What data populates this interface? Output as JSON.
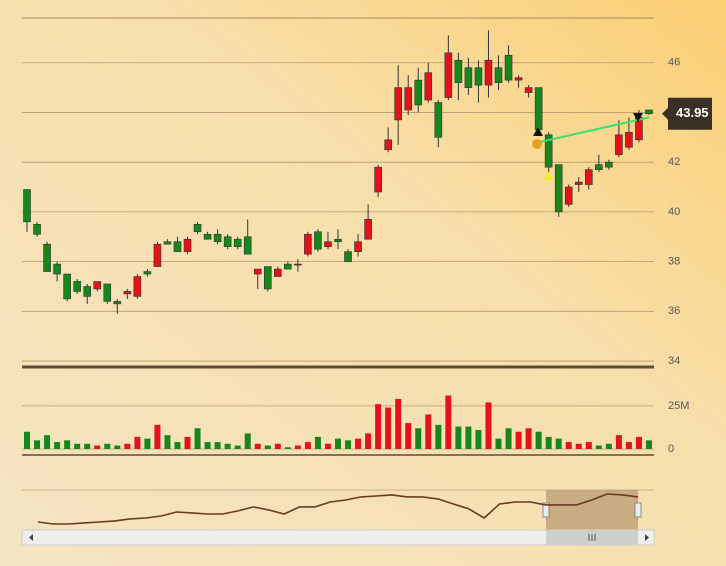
{
  "chart_data": {
    "type": "candlestick",
    "up_color": "#e3121b",
    "down_color": "#17861c",
    "ylim": [
      33.72,
      47.8
    ],
    "yticks": [
      34,
      36,
      38,
      40,
      42,
      44,
      46
    ],
    "open": [
      40.9,
      39.5,
      38.7,
      37.9,
      37.5,
      37.2,
      37.0,
      36.9,
      37.1,
      36.4,
      36.7,
      36.6,
      37.6,
      37.8,
      38.8,
      38.8,
      38.4,
      39.5,
      39.1,
      39.1,
      39.0,
      38.9,
      39.0,
      37.5,
      37.8,
      37.4,
      37.9,
      37.9,
      38.3,
      39.2,
      38.6,
      38.9,
      38.4,
      38.4,
      38.9,
      40.8,
      42.5,
      43.7,
      44.1,
      45.3,
      44.5,
      44.4,
      44.6,
      46.1,
      45.8,
      45.8,
      45.1,
      45.8,
      46.3,
      45.3,
      44.8,
      45.0,
      43.1,
      41.9,
      40.3,
      41.1,
      41.1,
      41.9,
      42.0,
      42.3,
      42.6,
      42.9,
      44.1
    ],
    "high": [
      40.9,
      39.6,
      38.8,
      38.0,
      37.5,
      37.3,
      37.1,
      37.2,
      37.1,
      36.5,
      36.9,
      37.5,
      37.7,
      38.8,
      38.9,
      39.0,
      39.0,
      39.6,
      39.2,
      39.3,
      39.1,
      39.0,
      39.7,
      37.7,
      37.8,
      37.8,
      38.0,
      38.1,
      39.2,
      39.3,
      39.2,
      39.3,
      38.5,
      39.1,
      40.3,
      41.9,
      43.4,
      45.9,
      45.5,
      45.8,
      46.0,
      44.5,
      47.1,
      46.4,
      46.2,
      46.1,
      47.3,
      46.3,
      46.7,
      45.5,
      45.1,
      45.0,
      43.2,
      41.9,
      41.1,
      41.4,
      41.8,
      42.3,
      42.1,
      43.7,
      43.8,
      44.1,
      44.1
    ],
    "low": [
      39.2,
      39.0,
      37.6,
      37.2,
      36.4,
      36.7,
      36.3,
      36.8,
      36.3,
      35.9,
      36.5,
      36.5,
      37.4,
      37.8,
      38.7,
      38.4,
      38.3,
      39.1,
      38.9,
      38.7,
      38.5,
      38.5,
      38.3,
      36.9,
      36.8,
      37.4,
      37.7,
      37.6,
      38.2,
      38.4,
      38.5,
      38.5,
      38.0,
      38.2,
      38.9,
      40.6,
      42.4,
      42.7,
      43.9,
      44.0,
      44.4,
      42.6,
      44.5,
      44.5,
      44.7,
      44.4,
      44.6,
      44.9,
      45.2,
      45.0,
      44.6,
      43.2,
      41.6,
      39.8,
      40.2,
      40.8,
      40.9,
      41.6,
      41.7,
      42.2,
      42.5,
      42.8,
      43.9
    ],
    "close": [
      39.6,
      39.1,
      37.6,
      37.5,
      36.5,
      36.8,
      36.6,
      37.2,
      36.4,
      36.3,
      36.8,
      37.4,
      37.5,
      38.7,
      38.7,
      38.4,
      38.9,
      39.2,
      38.9,
      38.8,
      38.6,
      38.6,
      38.3,
      37.7,
      36.9,
      37.7,
      37.7,
      37.9,
      39.1,
      38.5,
      38.8,
      38.8,
      38.0,
      38.8,
      39.7,
      41.8,
      42.9,
      45.0,
      45.0,
      44.3,
      45.6,
      43.0,
      46.4,
      45.2,
      45.0,
      45.1,
      46.1,
      45.2,
      45.3,
      45.4,
      45.0,
      43.3,
      41.8,
      40.0,
      41.0,
      41.2,
      41.7,
      41.7,
      41.8,
      43.1,
      43.2,
      43.8,
      43.95
    ],
    "last_price": 43.95,
    "volume": {
      "ylim": [
        -3.5,
        40
      ],
      "yticks": [
        0,
        {
          "value": 25,
          "label": "25M"
        }
      ],
      "values": [
        10,
        5,
        8,
        4,
        5,
        3,
        3,
        2,
        3,
        2,
        3,
        7,
        6,
        14,
        8,
        4,
        7,
        12,
        4,
        4,
        3,
        2,
        9,
        3,
        2,
        3,
        1,
        2,
        4,
        7,
        3,
        6,
        5,
        6,
        9,
        26,
        24,
        29,
        15,
        12,
        20,
        14,
        31,
        13,
        13,
        11,
        27,
        6,
        12,
        10,
        12,
        10,
        7,
        6,
        4,
        3,
        4,
        2,
        3,
        8,
        4,
        7,
        5
      ]
    },
    "trendline": {
      "from": [
        51,
        42.8
      ],
      "to": [
        62,
        43.8
      ],
      "color": "#3ddc6e"
    },
    "navigator": {
      "ylim": [
        30,
        48
      ],
      "color": "#6b3a1f",
      "values": [
        33.6,
        32.7,
        32.7,
        33.2,
        33.6,
        34.1,
        35.0,
        35.4,
        36.3,
        38.1,
        37.7,
        37.2,
        37.2,
        38.6,
        40.4,
        39.0,
        37.2,
        40.4,
        40.4,
        42.6,
        43.5,
        44.9,
        45.3,
        45.8,
        44.9,
        44.9,
        44.0,
        41.7,
        39.5,
        35.4,
        41.7,
        42.6,
        42.6,
        41.3,
        41.3,
        41.3,
        43.5,
        46.2,
        45.8,
        44.9
      ]
    }
  }
}
